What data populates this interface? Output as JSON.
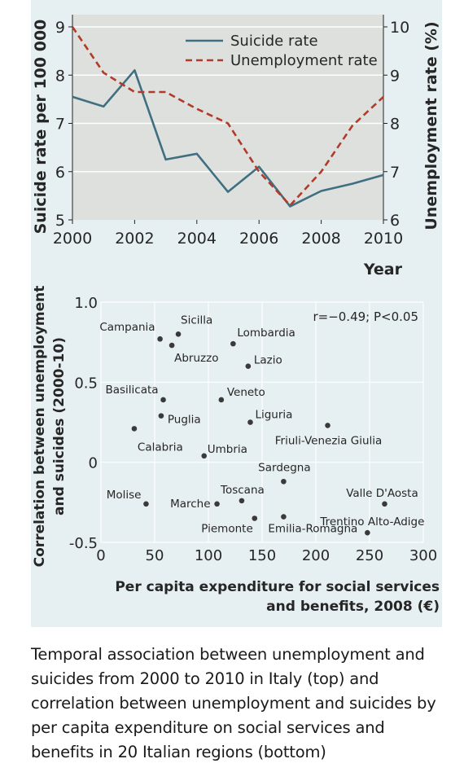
{
  "chart_data": [
    {
      "type": "line",
      "x": [
        2000,
        2001,
        2002,
        2003,
        2004,
        2005,
        2006,
        2007,
        2008,
        2009,
        2010
      ],
      "xlabel": "Year",
      "x_ticks": [
        "2000",
        "2002",
        "2004",
        "2006",
        "2008",
        "2010"
      ],
      "xlim": [
        2000,
        2010
      ],
      "ylabel_left": "Suicide rate per 100 000",
      "ylabel_right": "Unemployment rate (%)",
      "ylim_left": [
        5,
        9
      ],
      "ylim_right": [
        6,
        10
      ],
      "y_ticks_left": [
        "5",
        "6",
        "7",
        "8",
        "9"
      ],
      "y_ticks_right": [
        "6",
        "7",
        "8",
        "9",
        "10"
      ],
      "grid": true,
      "legend_position": "top-right",
      "series": [
        {
          "name": "Suicide rate",
          "axis": "left",
          "style": "solid",
          "color": "#3f6f80",
          "values": [
            7.55,
            7.35,
            8.1,
            6.25,
            6.37,
            5.58,
            6.1,
            5.28,
            5.6,
            5.75,
            5.93
          ]
        },
        {
          "name": "Unemployment rate",
          "axis": "right",
          "style": "dashed",
          "color": "#b23a2a",
          "values": [
            10.0,
            9.05,
            8.65,
            8.65,
            8.3,
            8.0,
            7.0,
            6.3,
            7.0,
            7.95,
            8.55
          ]
        }
      ]
    },
    {
      "type": "scatter",
      "xlabel_lines": [
        "Per capita expenditure for social services",
        "and benefits, 2008 (€)"
      ],
      "ylabel_lines": [
        "Correlation between unemployment",
        "and suicides (2000-10)"
      ],
      "xlim": [
        0,
        300
      ],
      "ylim": [
        -0.5,
        1.0
      ],
      "x_ticks": [
        "0",
        "50",
        "100",
        "150",
        "200",
        "250",
        "300"
      ],
      "y_ticks": [
        "-0.5",
        "0",
        "0.5",
        "1.0"
      ],
      "annotation": "r=−0.49; P<0.05",
      "grid": true,
      "point_color": "#3a3a3a",
      "points": [
        {
          "label": "Campania",
          "x": 55,
          "y": 0.77,
          "label_anchor": "end"
        },
        {
          "label": "Sicilla",
          "x": 72,
          "y": 0.8,
          "label_anchor": "start"
        },
        {
          "label": "Abruzzo",
          "x": 66,
          "y": 0.73,
          "label_anchor": "start"
        },
        {
          "label": "Lombardia",
          "x": 123,
          "y": 0.74,
          "label_anchor": "start"
        },
        {
          "label": "Lazio",
          "x": 137,
          "y": 0.6,
          "label_anchor": "start"
        },
        {
          "label": "Basilicata",
          "x": 58,
          "y": 0.39,
          "label_anchor": "end"
        },
        {
          "label": "Veneto",
          "x": 112,
          "y": 0.39,
          "label_anchor": "start"
        },
        {
          "label": "Puglia",
          "x": 56,
          "y": 0.29,
          "label_anchor": "start"
        },
        {
          "label": "Liguria",
          "x": 139,
          "y": 0.25,
          "label_anchor": "start"
        },
        {
          "label": "Friuli-Venezia Giulia",
          "x": 211,
          "y": 0.23,
          "label_anchor": "middle"
        },
        {
          "label": "Calabria",
          "x": 31,
          "y": 0.21,
          "label_anchor": "start"
        },
        {
          "label": "Umbria",
          "x": 96,
          "y": 0.04,
          "label_anchor": "start"
        },
        {
          "label": "Sardegna",
          "x": 170,
          "y": -0.12,
          "label_anchor": "middle"
        },
        {
          "label": "Molise",
          "x": 42,
          "y": -0.26,
          "label_anchor": "end"
        },
        {
          "label": "Marche",
          "x": 108,
          "y": -0.26,
          "label_anchor": "end"
        },
        {
          "label": "Toscana",
          "x": 131,
          "y": -0.24,
          "label_anchor": "middle"
        },
        {
          "label": "Valle D'Aosta",
          "x": 264,
          "y": -0.26,
          "label_anchor": "middle"
        },
        {
          "label": "Emilia-Romagna",
          "x": 170,
          "y": -0.34,
          "label_anchor": "start"
        },
        {
          "label": "Piemonte",
          "x": 143,
          "y": -0.35,
          "label_anchor": "end"
        },
        {
          "label": "Trentino Alto-Adige",
          "x": 248,
          "y": -0.44,
          "label_anchor": "middle"
        }
      ]
    }
  ],
  "caption": "Temporal association between unemployment and suicides from 2000 to 2010 in Italy (top) and correlation between unemployment and suicides by per capita expenditure on social services and benefits in 20 Italian regions (bottom)"
}
